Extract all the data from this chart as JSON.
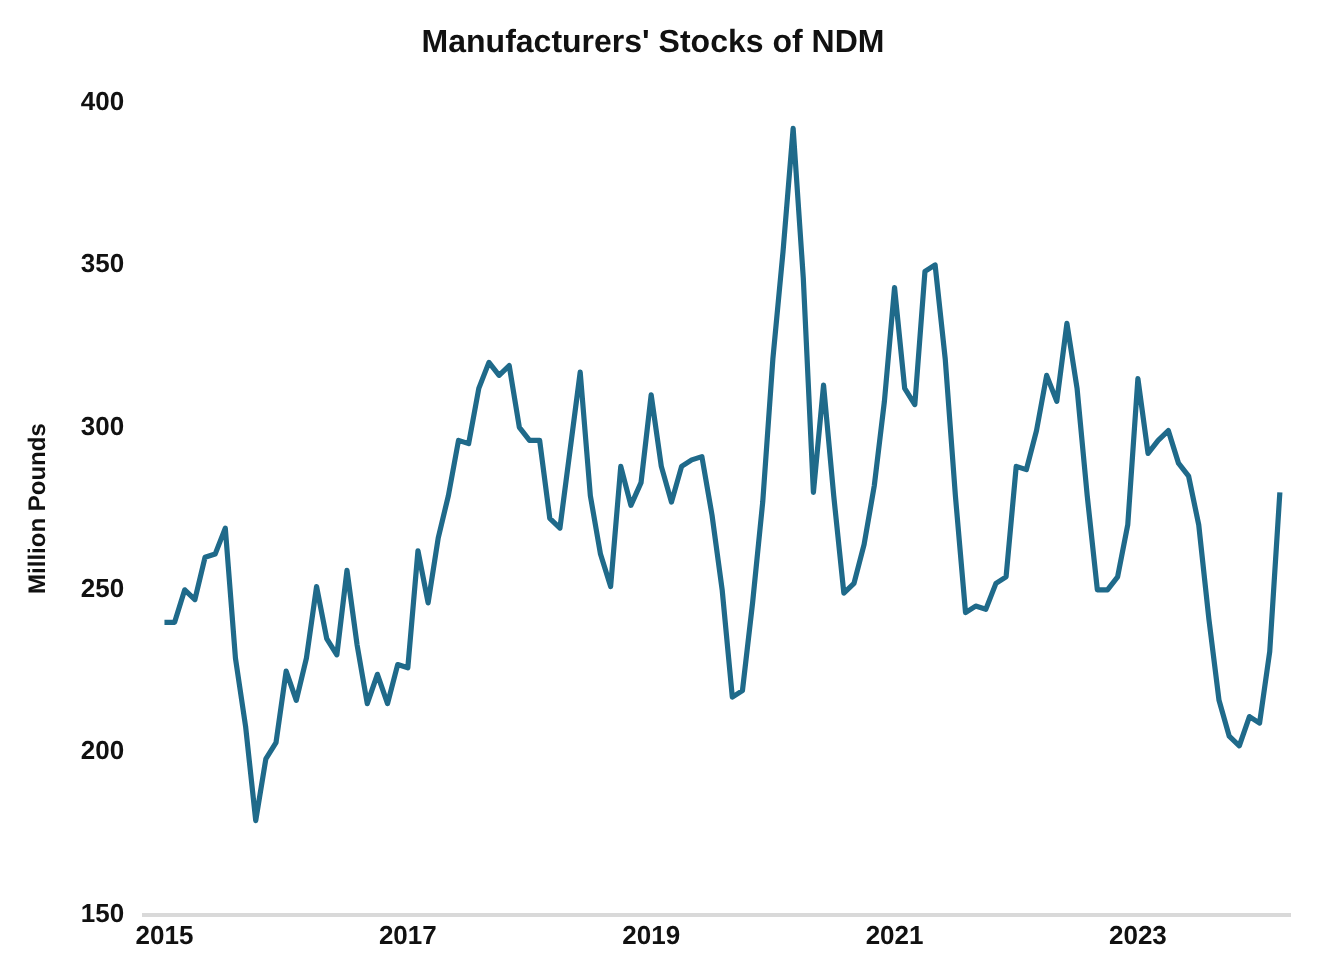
{
  "chart_data": {
    "type": "line",
    "title": "Manufacturers' Stocks of NDM",
    "ylabel": "Million Pounds",
    "x": [
      "2015-01",
      "2015-02",
      "2015-03",
      "2015-04",
      "2015-05",
      "2015-06",
      "2015-07",
      "2015-08",
      "2015-09",
      "2015-10",
      "2015-11",
      "2015-12",
      "2016-01",
      "2016-02",
      "2016-03",
      "2016-04",
      "2016-05",
      "2016-06",
      "2016-07",
      "2016-08",
      "2016-09",
      "2016-10",
      "2016-11",
      "2016-12",
      "2017-01",
      "2017-02",
      "2017-03",
      "2017-04",
      "2017-05",
      "2017-06",
      "2017-07",
      "2017-08",
      "2017-09",
      "2017-10",
      "2017-11",
      "2017-12",
      "2018-01",
      "2018-02",
      "2018-03",
      "2018-04",
      "2018-05",
      "2018-06",
      "2018-07",
      "2018-08",
      "2018-09",
      "2018-10",
      "2018-11",
      "2018-12",
      "2019-01",
      "2019-02",
      "2019-03",
      "2019-04",
      "2019-05",
      "2019-06",
      "2019-07",
      "2019-08",
      "2019-09",
      "2019-10",
      "2019-11",
      "2019-12",
      "2020-01",
      "2020-02",
      "2020-03",
      "2020-04",
      "2020-05",
      "2020-06",
      "2020-07",
      "2020-08",
      "2020-09",
      "2020-10",
      "2020-11",
      "2020-12",
      "2021-01",
      "2021-02",
      "2021-03",
      "2021-04",
      "2021-05",
      "2021-06",
      "2021-07",
      "2021-08",
      "2021-09",
      "2021-10",
      "2021-11",
      "2021-12",
      "2022-01",
      "2022-02",
      "2022-03",
      "2022-04",
      "2022-05",
      "2022-06",
      "2022-07",
      "2022-08",
      "2022-09",
      "2022-10",
      "2022-11",
      "2022-12",
      "2023-01",
      "2023-02",
      "2023-03",
      "2023-04",
      "2023-05",
      "2023-06",
      "2023-07",
      "2023-08",
      "2023-09",
      "2023-10",
      "2023-11",
      "2023-12",
      "2024-01",
      "2024-02",
      "2024-03"
    ],
    "series": [
      {
        "color": "#1f6a8a",
        "values": [
          240,
          240,
          250,
          247,
          260,
          261,
          269,
          229,
          208,
          179,
          198,
          203,
          225,
          216,
          229,
          251,
          235,
          230,
          256,
          233,
          215,
          224,
          215,
          227,
          226,
          262,
          246,
          266,
          279,
          296,
          295,
          312,
          320,
          316,
          319,
          300,
          296,
          296,
          272,
          269,
          293,
          317,
          279,
          261,
          251,
          288,
          276,
          283,
          310,
          288,
          277,
          288,
          290,
          291,
          273,
          250,
          217,
          219,
          246,
          277,
          321,
          354,
          392,
          346,
          280,
          313,
          279,
          249,
          252,
          264,
          282,
          308,
          343,
          312,
          307,
          348,
          350,
          321,
          279,
          243,
          245,
          244,
          252,
          254,
          288,
          287,
          299,
          316,
          308,
          332,
          312,
          279,
          250,
          250,
          254,
          270,
          315,
          292,
          296,
          299,
          289,
          285,
          270,
          241,
          216,
          205,
          202,
          211,
          209,
          231,
          280
        ]
      }
    ],
    "xlim": [
      "2014-11",
      "2024-04"
    ],
    "xticks": [
      "2015",
      "2017",
      "2019",
      "2021",
      "2023"
    ],
    "ylim": [
      150,
      400
    ],
    "yticks": [
      150,
      200,
      250,
      300,
      350,
      400
    ],
    "grid": false,
    "legend": false,
    "marker": "none",
    "line_style": "solid"
  }
}
